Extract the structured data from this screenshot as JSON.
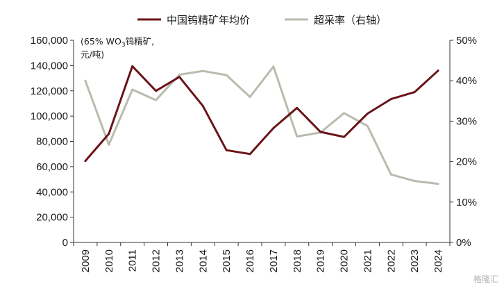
{
  "chart_data": {
    "type": "line",
    "categories": [
      "2009",
      "2010",
      "2011",
      "2012",
      "2013",
      "2014",
      "2015",
      "2016",
      "2017",
      "2018",
      "2019",
      "2020",
      "2021",
      "2022",
      "2023",
      "2024"
    ],
    "unit_label_line1": "(65% WO",
    "unit_label_sub": "3",
    "unit_label_tail": "钨精矿,",
    "unit_label_line2": "元/吨)",
    "y_left": {
      "ticks": [
        "0",
        "20,000",
        "40,000",
        "60,000",
        "80,000",
        "100,000",
        "120,000",
        "140,000",
        "160,000"
      ],
      "ylim": [
        0,
        160000
      ]
    },
    "y_right": {
      "ticks": [
        "0%",
        "10%",
        "20%",
        "30%",
        "40%",
        "50%"
      ],
      "ylim": [
        0,
        50
      ]
    },
    "series": [
      {
        "name": "中国钨精矿年均价",
        "axis": "left",
        "color": "#6b1419",
        "values": [
          64500,
          86000,
          139500,
          120000,
          131000,
          108000,
          73000,
          70000,
          90500,
          106500,
          87500,
          83500,
          102000,
          113500,
          119000,
          136000
        ]
      },
      {
        "name": "超采率（右轴）",
        "axis": "right",
        "color": "#b8bcae",
        "values": [
          40.0,
          24.2,
          37.8,
          35.2,
          41.5,
          42.4,
          41.4,
          36.0,
          43.5,
          26.2,
          27.2,
          32.0,
          28.8,
          16.8,
          15.2,
          14.5
        ]
      }
    ],
    "legend_position": "top",
    "grid": false
  },
  "watermark": "格隆汇"
}
